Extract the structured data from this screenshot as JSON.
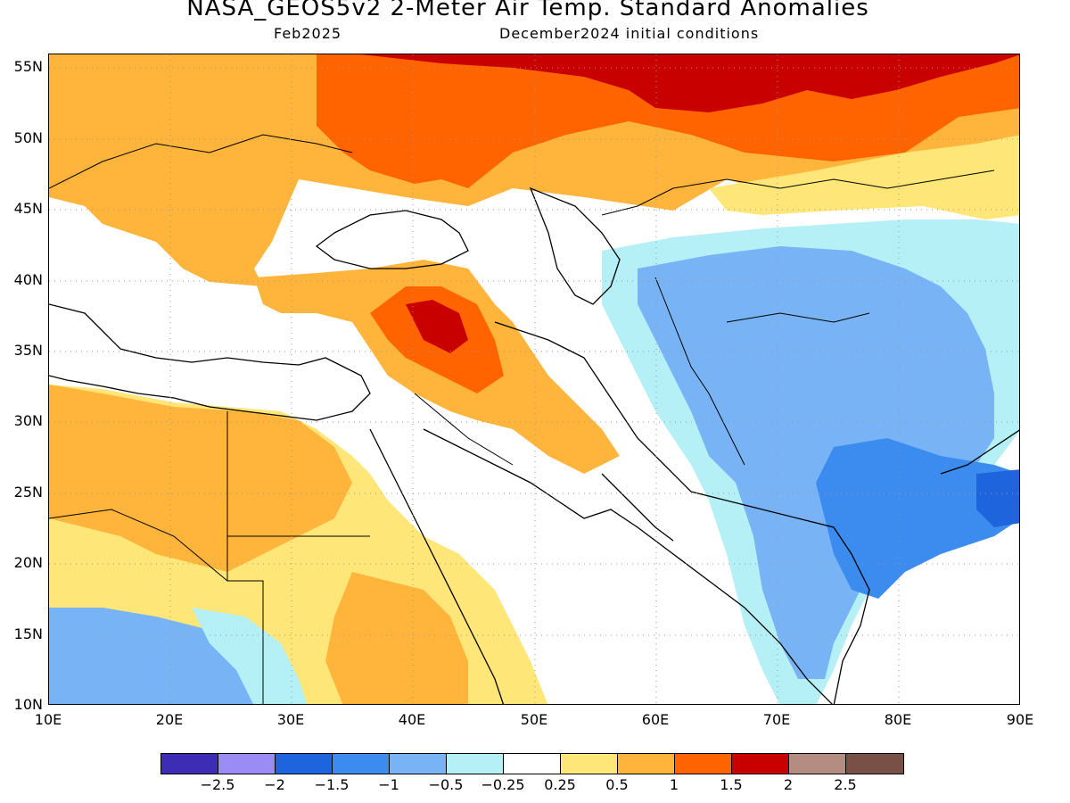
{
  "title": "NASA_GEOS5v2 2-Meter Air Temp. Standard Anomalies",
  "subtitle_left": "Feb2025",
  "subtitle_right": "December2024 initial conditions",
  "latitude_labels": [
    "55N",
    "50N",
    "45N",
    "40N",
    "35N",
    "30N",
    "25N",
    "20N",
    "15N",
    "10N"
  ],
  "longitude_labels": [
    "10E",
    "20E",
    "30E",
    "40E",
    "50E",
    "60E",
    "70E",
    "80E",
    "90E"
  ],
  "colorbar": {
    "colors": [
      "#3c2db4",
      "#9b8cf5",
      "#1e64dc",
      "#3c8cf0",
      "#78b4f5",
      "#b4f0f5",
      "#ffffff",
      "#ffe678",
      "#ffb43c",
      "#ff6400",
      "#c80000",
      "#b48c82",
      "#785046"
    ],
    "labels": [
      "−2.5",
      "−2",
      "−1.5",
      "−1",
      "−0.5",
      "−0.25",
      "0.25",
      "0.5",
      "1",
      "1.5",
      "2",
      "2.5"
    ]
  },
  "map": {
    "lon_range": [
      10,
      90
    ],
    "lat_range": [
      10,
      56
    ],
    "grid": "dotted"
  }
}
